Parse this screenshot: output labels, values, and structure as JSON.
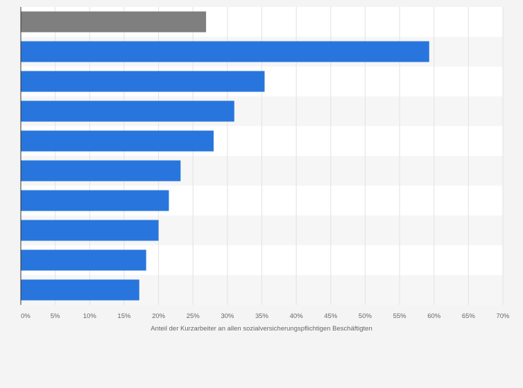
{
  "chart_data": {
    "type": "bar",
    "orientation": "horizontal",
    "title": "",
    "xlabel": "Anteil der Kurzarbeiter an allen sozialversicherungspflichtigen Beschäftigten",
    "ylabel": "",
    "xlim": [
      0,
      70
    ],
    "xticks": [
      0,
      5,
      10,
      15,
      20,
      25,
      30,
      35,
      40,
      45,
      50,
      55,
      60,
      65,
      70
    ],
    "tick_suffix": "%",
    "categories": [
      "",
      "",
      "",
      "",
      "",
      "",
      "",
      "",
      "",
      ""
    ],
    "values": [
      26.9,
      59.3,
      35.4,
      31.0,
      28.0,
      23.2,
      21.5,
      20.0,
      18.2,
      17.2
    ],
    "bar_colors": [
      "#7f7f7f",
      "#2876dd",
      "#2876dd",
      "#2876dd",
      "#2876dd",
      "#2876dd",
      "#2876dd",
      "#2876dd",
      "#2876dd",
      "#2876dd"
    ],
    "grid": true
  }
}
